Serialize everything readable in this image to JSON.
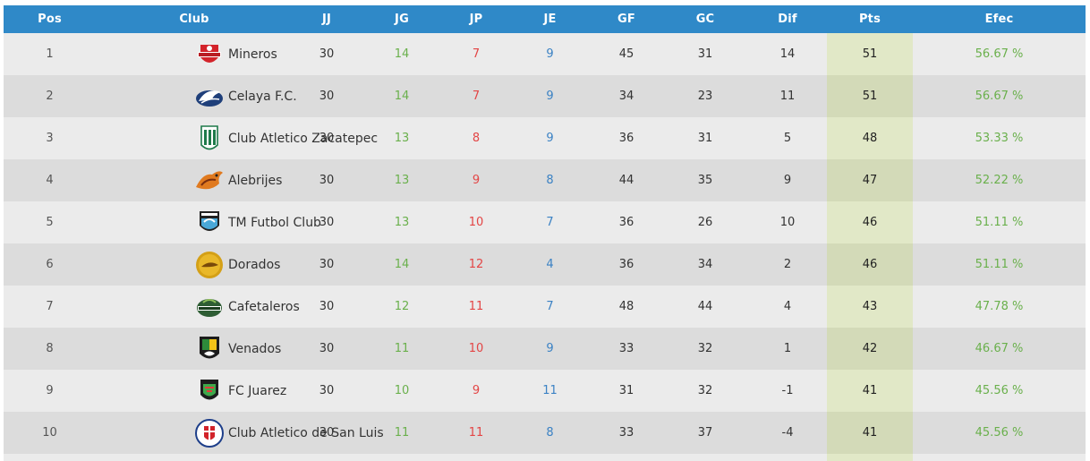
{
  "header": {
    "pos": "Pos",
    "club": "Club",
    "jj": "JJ",
    "jg": "JG",
    "jp": "JP",
    "je": "JE",
    "gf": "GF",
    "gc": "GC",
    "dif": "Dif",
    "pts": "Pts",
    "efec": "Efec"
  },
  "rows": [
    {
      "pos": "1",
      "club": "Mineros",
      "logo": "mineros-logo",
      "jj": "30",
      "jg": "14",
      "jp": "7",
      "je": "9",
      "gf": "45",
      "gc": "31",
      "dif": "14",
      "pts": "51",
      "efec": "56.67 %"
    },
    {
      "pos": "2",
      "club": "Celaya F.C.",
      "logo": "celaya-logo",
      "jj": "30",
      "jg": "14",
      "jp": "7",
      "je": "9",
      "gf": "34",
      "gc": "23",
      "dif": "11",
      "pts": "51",
      "efec": "56.67 %"
    },
    {
      "pos": "3",
      "club": "Club Atletico Zacatepec",
      "logo": "zacatepec-logo",
      "jj": "30",
      "jg": "13",
      "jp": "8",
      "je": "9",
      "gf": "36",
      "gc": "31",
      "dif": "5",
      "pts": "48",
      "efec": "53.33 %"
    },
    {
      "pos": "4",
      "club": "Alebrijes",
      "logo": "alebrijes-logo",
      "jj": "30",
      "jg": "13",
      "jp": "9",
      "je": "8",
      "gf": "44",
      "gc": "35",
      "dif": "9",
      "pts": "47",
      "efec": "52.22 %"
    },
    {
      "pos": "5",
      "club": "TM Futbol Club",
      "logo": "tm-futbol-logo",
      "jj": "30",
      "jg": "13",
      "jp": "10",
      "je": "7",
      "gf": "36",
      "gc": "26",
      "dif": "10",
      "pts": "46",
      "efec": "51.11 %"
    },
    {
      "pos": "6",
      "club": "Dorados",
      "logo": "dorados-logo",
      "jj": "30",
      "jg": "14",
      "jp": "12",
      "je": "4",
      "gf": "36",
      "gc": "34",
      "dif": "2",
      "pts": "46",
      "efec": "51.11 %"
    },
    {
      "pos": "7",
      "club": "Cafetaleros",
      "logo": "cafetaleros-logo",
      "jj": "30",
      "jg": "12",
      "jp": "11",
      "je": "7",
      "gf": "48",
      "gc": "44",
      "dif": "4",
      "pts": "43",
      "efec": "47.78 %"
    },
    {
      "pos": "8",
      "club": "Venados",
      "logo": "venados-logo",
      "jj": "30",
      "jg": "11",
      "jp": "10",
      "je": "9",
      "gf": "33",
      "gc": "32",
      "dif": "1",
      "pts": "42",
      "efec": "46.67 %"
    },
    {
      "pos": "9",
      "club": "FC Juarez",
      "logo": "fc-juarez-logo",
      "jj": "30",
      "jg": "10",
      "jp": "9",
      "je": "11",
      "gf": "31",
      "gc": "32",
      "dif": "-1",
      "pts": "41",
      "efec": "45.56 %"
    },
    {
      "pos": "10",
      "club": "Club Atletico de San Luis",
      "logo": "san-luis-logo",
      "jj": "30",
      "jg": "11",
      "jp": "11",
      "je": "8",
      "gf": "33",
      "gc": "37",
      "dif": "-4",
      "pts": "41",
      "efec": "45.56 %"
    }
  ],
  "colors": {
    "header_bg": "#2f89c8",
    "row_odd": "#ebebeb",
    "row_even": "#dcdcdc",
    "pts_highlight": "#e1e8c7",
    "jg_green": "#6ab04c",
    "jp_red": "#e34545",
    "je_blue": "#3b82c4"
  }
}
